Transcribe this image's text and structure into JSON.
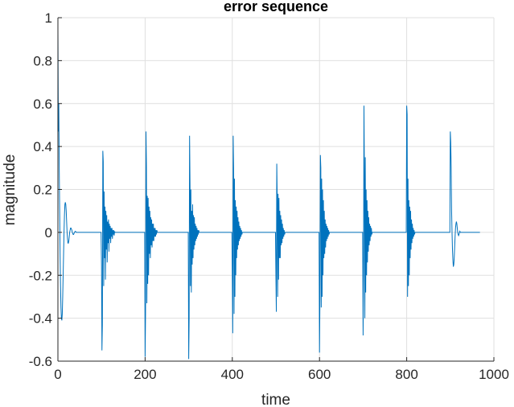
{
  "chart_data": {
    "type": "line",
    "title": "error sequence",
    "xlabel": "time",
    "ylabel": "magnitude",
    "xlim": [
      0,
      1000
    ],
    "ylim": [
      -0.6,
      1
    ],
    "xticks": [
      0,
      200,
      400,
      600,
      800,
      1000
    ],
    "xtick_labels": [
      "0",
      "200",
      "400",
      "600",
      "800",
      "1000"
    ],
    "yticks": [
      -0.6,
      -0.4,
      -0.2,
      0,
      0.2,
      0.4,
      0.6,
      0.8,
      1
    ],
    "ytick_labels": [
      "-0.6",
      "-0.4",
      "-0.2",
      "0",
      "0.2",
      "0.4",
      "0.6",
      "0.8",
      "1"
    ],
    "grid": true,
    "line_color": "#0072BD",
    "last_sample": 968,
    "baseline_value": 0,
    "series": [
      {
        "bursts": [
          {
            "start": 0,
            "values": [
              0.95,
              0.47,
              0.6,
              0.3,
              0.1,
              -0.1,
              -0.25,
              -0.35,
              -0.4,
              -0.41,
              -0.38,
              -0.3,
              -0.2,
              -0.1,
              0,
              0.08,
              0.13,
              0.14,
              0.13,
              0.1,
              0.05,
              0,
              -0.03,
              -0.05,
              -0.05,
              -0.04,
              -0.02,
              0,
              0.01,
              0.02,
              0.02,
              0.015,
              0.01,
              0,
              -0.005,
              -0.01,
              -0.01,
              -0.005,
              0,
              0.003,
              0.005,
              0.003,
              0
            ]
          },
          {
            "start": 100,
            "values": [
              -0.15,
              -0.55,
              -0.43,
              0.38,
              0.33,
              -0.25,
              0.19,
              -0.12,
              0.12,
              -0.22,
              0.1,
              -0.08,
              0.08,
              -0.14,
              0.05,
              -0.05,
              0.06,
              -0.09,
              0.04,
              -0.03,
              0.03,
              -0.05,
              0.02,
              -0.02,
              0.02,
              -0.03,
              0.01,
              -0.01,
              0.01,
              -0.015,
              0.005,
              0
            ]
          },
          {
            "start": 200,
            "values": [
              -0.58,
              -0.38,
              0.47,
              0.31,
              -0.33,
              0.17,
              -0.24,
              0.16,
              -0.2,
              0.12,
              -0.1,
              0.1,
              -0.12,
              0.07,
              -0.06,
              0.06,
              -0.07,
              0.04,
              -0.04,
              0.04,
              -0.04,
              0.02,
              -0.02,
              0.02,
              -0.02,
              0.01,
              -0.01,
              0.01,
              0
            ]
          },
          {
            "start": 300,
            "values": [
              -0.59,
              -0.4,
              0.45,
              0.22,
              -0.25,
              0.2,
              -0.28,
              0.1,
              -0.15,
              0.13,
              -0.12,
              0.08,
              -0.08,
              0.07,
              -0.06,
              0.04,
              -0.04,
              0.03,
              -0.03,
              0.02,
              -0.02,
              0.01,
              -0.01,
              0.01,
              0
            ]
          },
          {
            "start": 400,
            "values": [
              -0.2,
              -0.47,
              0.45,
              0.3,
              -0.38,
              0.25,
              -0.3,
              0.15,
              -0.2,
              0.12,
              -0.12,
              0.1,
              -0.08,
              0.07,
              -0.06,
              0.05,
              -0.04,
              0.03,
              -0.03,
              0.02,
              -0.02,
              0.01,
              -0.01,
              0
            ]
          },
          {
            "start": 500,
            "values": [
              -0.2,
              -0.37,
              0.32,
              0.15,
              -0.3,
              0.18,
              -0.22,
              0.16,
              -0.12,
              0.1,
              -0.12,
              0.08,
              -0.06,
              0.06,
              -0.05,
              0.04,
              -0.03,
              0.02,
              -0.02,
              0.01,
              -0.01,
              0
            ]
          },
          {
            "start": 600,
            "values": [
              -0.56,
              -0.3,
              0.36,
              0.3,
              -0.35,
              0.25,
              -0.3,
              0.2,
              -0.2,
              0.15,
              -0.12,
              0.1,
              -0.1,
              0.06,
              -0.07,
              0.04,
              -0.04,
              0.03,
              -0.03,
              0.02,
              -0.02,
              0.01,
              -0.01,
              0
            ]
          },
          {
            "start": 700,
            "values": [
              -0.48,
              -0.2,
              0.59,
              0.25,
              -0.4,
              0.35,
              -0.28,
              0.2,
              -0.2,
              0.15,
              -0.14,
              0.1,
              -0.09,
              0.07,
              -0.06,
              0.04,
              -0.04,
              0.03,
              -0.02,
              0.02,
              -0.01,
              0
            ]
          },
          {
            "start": 800,
            "values": [
              0.59,
              0.55,
              -0.3,
              0.25,
              -0.25,
              0.15,
              -0.2,
              0.12,
              -0.12,
              0.1,
              -0.08,
              0.06,
              -0.05,
              0.04,
              -0.03,
              0.02,
              -0.02,
              0.01,
              -0.01,
              0
            ]
          },
          {
            "start": 900,
            "values": [
              0.47,
              0.42,
              0.3,
              0.1,
              0,
              -0.08,
              -0.13,
              -0.16,
              -0.15,
              -0.12,
              -0.07,
              -0.02,
              0.02,
              0.04,
              0.05,
              0.04,
              0.02,
              0,
              -0.01,
              -0.015,
              -0.01,
              0,
              0.005,
              0
            ]
          }
        ]
      }
    ]
  }
}
